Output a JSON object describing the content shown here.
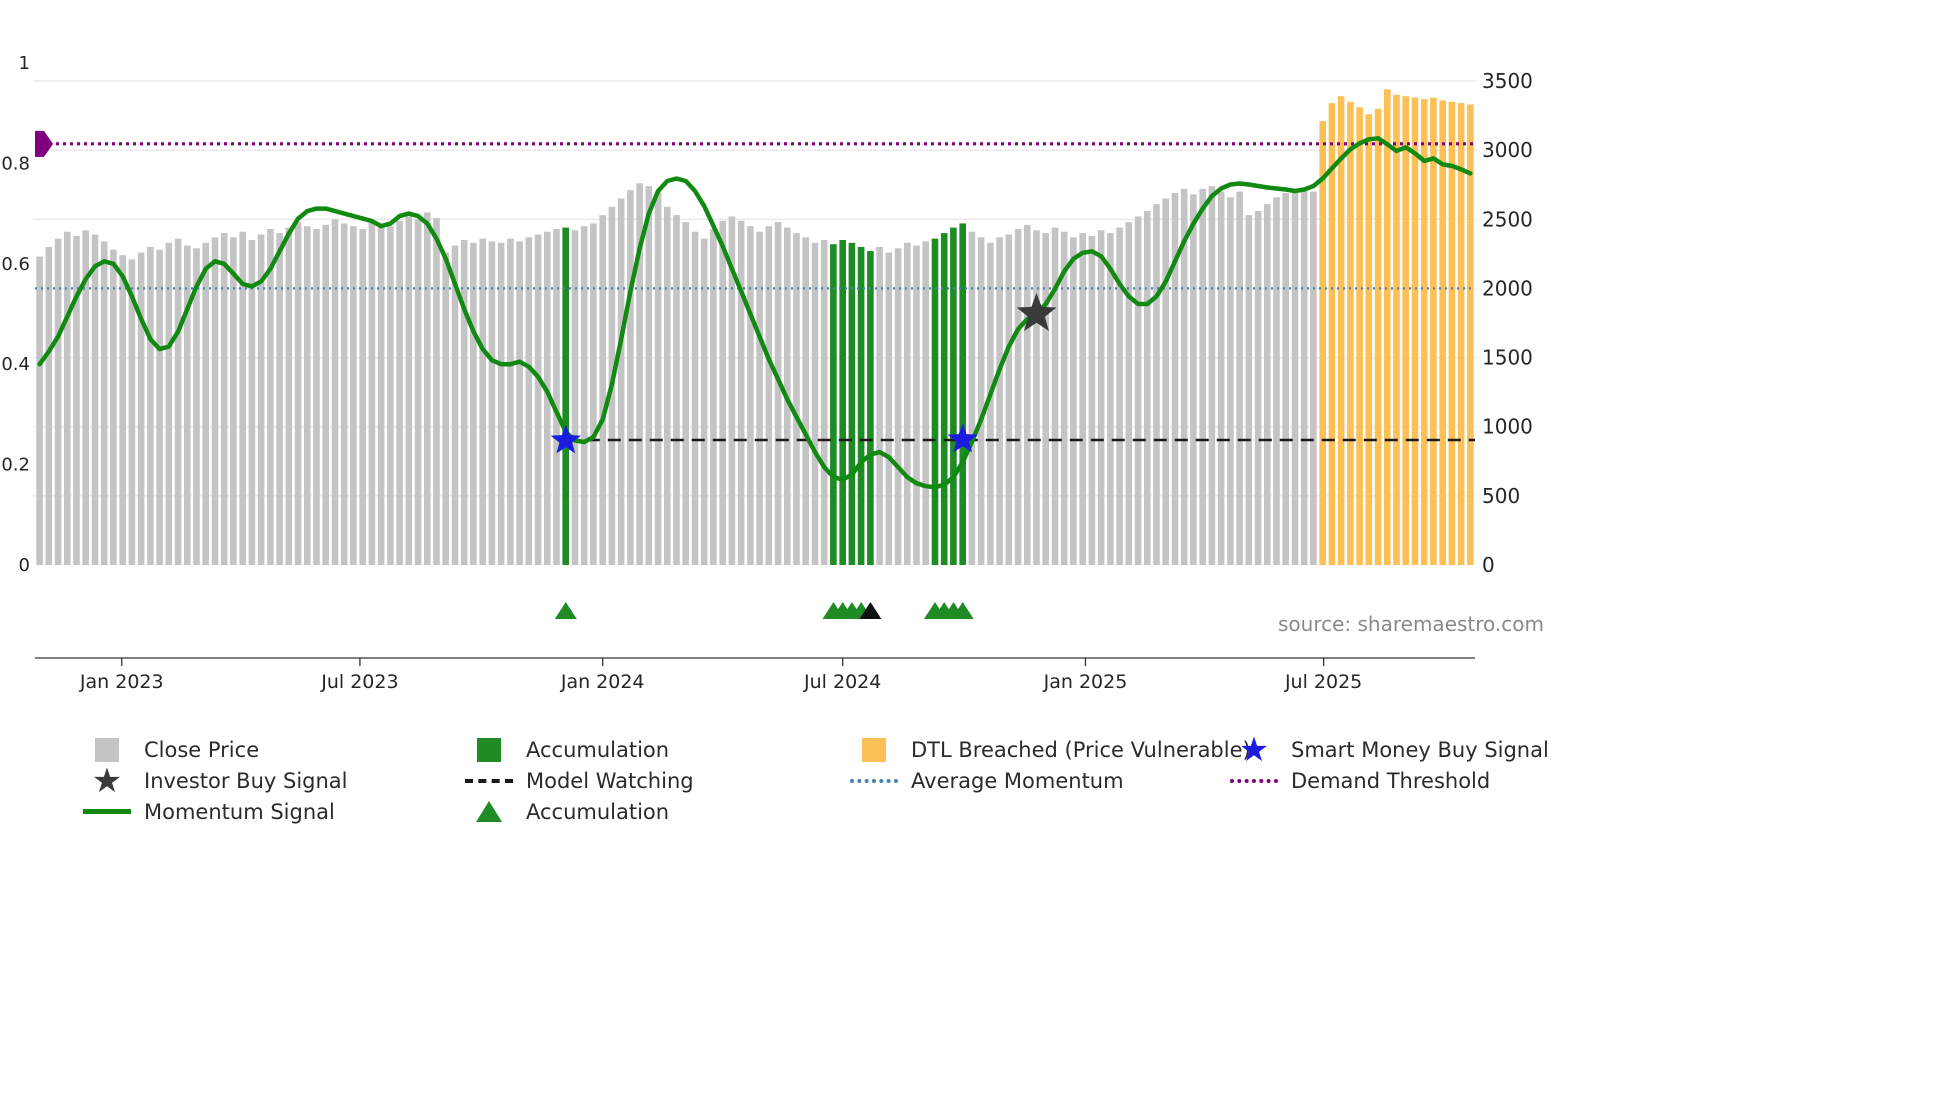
{
  "source_text": "source: sharemaestro.com",
  "colors": {
    "close_price": "#c4c4c4",
    "accumulation": "#1f8b24",
    "dtl_breached": "#fcc056",
    "momentum_line": "#128a12",
    "average_momentum": "#4682B4",
    "model_watching": "#1a1a1a",
    "demand_threshold": "#800080",
    "smart_money_star": "#1c1ce0",
    "investor_star": "#3a3a3a",
    "triangle_green": "#1f8b24",
    "triangle_black": "#111111",
    "grid": "#e7e7e7",
    "axis_text": "#262626",
    "axis_line": "#333333"
  },
  "chart_data": {
    "type": "bar",
    "title": "",
    "left_axis": {
      "range": [
        0,
        1
      ],
      "tick_values": [
        0,
        0.2,
        0.4,
        0.6,
        0.8,
        1
      ],
      "tick_labels": [
        "0",
        "0.2",
        "0.4",
        "0.6",
        "0.8",
        "1"
      ]
    },
    "right_axis": {
      "range": [
        0,
        3500
      ],
      "tick_values": [
        0,
        500,
        1000,
        1500,
        2000,
        2500,
        3000,
        3500
      ],
      "tick_labels": [
        "0",
        "500",
        "1000",
        "1500",
        "2000",
        "2500",
        "3000",
        "3500"
      ]
    },
    "x_ticks": [
      {
        "label": "Jan 2023",
        "index": 8.9
      },
      {
        "label": "Jul 2023",
        "index": 34.7
      },
      {
        "label": "Jan 2024",
        "index": 61.0
      },
      {
        "label": "Jul 2024",
        "index": 87.0
      },
      {
        "label": "Jan 2025",
        "index": 113.3
      },
      {
        "label": "Jul 2025",
        "index": 139.1
      }
    ],
    "series": [
      {
        "name": "Close Price",
        "type": "bar",
        "axis": "right",
        "values": [
          2230,
          2300,
          2360,
          2410,
          2380,
          2420,
          2390,
          2340,
          2280,
          2240,
          2210,
          2260,
          2300,
          2280,
          2330,
          2360,
          2310,
          2290,
          2330,
          2370,
          2400,
          2370,
          2410,
          2350,
          2390,
          2430,
          2400,
          2440,
          2480,
          2450,
          2430,
          2460,
          2500,
          2470,
          2450,
          2430,
          2480,
          2460,
          2450,
          2490,
          2520,
          2500,
          2550,
          2510,
          2260,
          2310,
          2350,
          2330,
          2360,
          2340,
          2330,
          2360,
          2340,
          2370,
          2390,
          2410,
          2430,
          2440,
          2420,
          2450,
          2470,
          2530,
          2590,
          2650,
          2710,
          2760,
          2740,
          2700,
          2590,
          2530,
          2480,
          2410,
          2360,
          2430,
          2490,
          2520,
          2490,
          2450,
          2410,
          2450,
          2480,
          2440,
          2400,
          2370,
          2330,
          2350,
          2320,
          2350,
          2330,
          2300,
          2270,
          2300,
          2260,
          2290,
          2330,
          2310,
          2340,
          2360,
          2400,
          2440,
          2470,
          2410,
          2370,
          2330,
          2370,
          2390,
          2430,
          2460,
          2420,
          2400,
          2440,
          2410,
          2370,
          2400,
          2380,
          2420,
          2400,
          2440,
          2480,
          2520,
          2560,
          2610,
          2650,
          2690,
          2720,
          2680,
          2720,
          2740,
          2700,
          2660,
          2700,
          2530,
          2560,
          2610,
          2660,
          2690,
          2710,
          2730,
          2700,
          3210,
          3340,
          3390,
          3350,
          3310,
          3260,
          3300,
          3440,
          3400,
          3390,
          3380,
          3370,
          3380,
          3360,
          3350,
          3340,
          3330
        ]
      },
      {
        "name": "Momentum Signal",
        "type": "line",
        "axis": "left",
        "values": [
          0.4,
          0.425,
          0.455,
          0.495,
          0.535,
          0.57,
          0.595,
          0.605,
          0.6,
          0.575,
          0.535,
          0.49,
          0.45,
          0.43,
          0.435,
          0.465,
          0.51,
          0.555,
          0.59,
          0.605,
          0.6,
          0.58,
          0.56,
          0.555,
          0.565,
          0.59,
          0.625,
          0.66,
          0.69,
          0.705,
          0.71,
          0.71,
          0.705,
          0.7,
          0.695,
          0.69,
          0.685,
          0.675,
          0.68,
          0.695,
          0.7,
          0.695,
          0.68,
          0.65,
          0.61,
          0.56,
          0.51,
          0.465,
          0.43,
          0.408,
          0.4,
          0.4,
          0.405,
          0.395,
          0.375,
          0.345,
          0.305,
          0.265,
          0.248,
          0.245,
          0.255,
          0.29,
          0.36,
          0.45,
          0.545,
          0.63,
          0.7,
          0.745,
          0.765,
          0.77,
          0.765,
          0.745,
          0.715,
          0.675,
          0.635,
          0.59,
          0.545,
          0.5,
          0.455,
          0.41,
          0.37,
          0.33,
          0.295,
          0.26,
          0.225,
          0.195,
          0.175,
          0.17,
          0.18,
          0.205,
          0.22,
          0.225,
          0.215,
          0.195,
          0.175,
          0.163,
          0.157,
          0.155,
          0.16,
          0.175,
          0.205,
          0.245,
          0.29,
          0.34,
          0.39,
          0.435,
          0.47,
          0.49,
          0.5,
          0.52,
          0.55,
          0.585,
          0.61,
          0.622,
          0.625,
          0.615,
          0.59,
          0.56,
          0.535,
          0.52,
          0.52,
          0.535,
          0.565,
          0.605,
          0.645,
          0.68,
          0.71,
          0.735,
          0.75,
          0.758,
          0.76,
          0.758,
          0.755,
          0.752,
          0.75,
          0.748,
          0.745,
          0.748,
          0.755,
          0.77,
          0.79,
          0.81,
          0.828,
          0.84,
          0.848,
          0.85,
          0.838,
          0.825,
          0.832,
          0.82,
          0.805,
          0.81,
          0.798,
          0.795,
          0.788,
          0.78
        ]
      }
    ],
    "bar_highlights": {
      "accumulation_indices": [
        57,
        86,
        87,
        88,
        89,
        90,
        97,
        98,
        99,
        100
      ],
      "dtl_breached_from_index": 139
    },
    "hlines": [
      {
        "name": "Demand Threshold",
        "axis": "left",
        "value": 0.839,
        "style": "dotted"
      },
      {
        "name": "Average Momentum",
        "axis": "left",
        "value": 0.551,
        "style": "dotted"
      },
      {
        "name": "Model Watching",
        "axis": "left",
        "value": 0.249,
        "style": "dashed",
        "from_index": 57
      }
    ],
    "markers": {
      "demand_threshold_flag": {
        "value": 0.839
      },
      "smart_money_buy_signals": [
        {
          "index": 57,
          "value": 0.248
        },
        {
          "index": 100,
          "value": 0.25
        }
      ],
      "investor_buy_signals": [
        {
          "index": 108,
          "value": 0.5
        }
      ],
      "accumulation_triangles_green": [
        57,
        86,
        87,
        88,
        89,
        97,
        98,
        99,
        100
      ],
      "accumulation_triangles_black": [
        90
      ]
    }
  },
  "legend": {
    "columns": [
      [
        {
          "icon": "square",
          "color_key": "close_price",
          "label": "Close Price"
        },
        {
          "icon": "star",
          "color_key": "investor_star",
          "label": "Investor Buy Signal"
        },
        {
          "icon": "line",
          "color_key": "momentum_line",
          "label": "Momentum Signal"
        }
      ],
      [
        {
          "icon": "square",
          "color_key": "accumulation",
          "label": "Accumulation"
        },
        {
          "icon": "dashed",
          "color_key": "model_watching",
          "label": "Model Watching"
        },
        {
          "icon": "triangle",
          "color_key": "accumulation",
          "label": "Accumulation"
        }
      ],
      [
        {
          "icon": "square",
          "color_key": "dtl_breached",
          "label": "DTL Breached (Price Vulnerable)"
        },
        {
          "icon": "dotted",
          "color_key": "average_momentum",
          "label": "Average Momentum"
        }
      ],
      [
        {
          "icon": "star",
          "color_key": "smart_money_star",
          "label": "Smart Money Buy Signal"
        },
        {
          "icon": "dotted",
          "color_key": "demand_threshold",
          "label": "Demand Threshold"
        }
      ]
    ]
  }
}
